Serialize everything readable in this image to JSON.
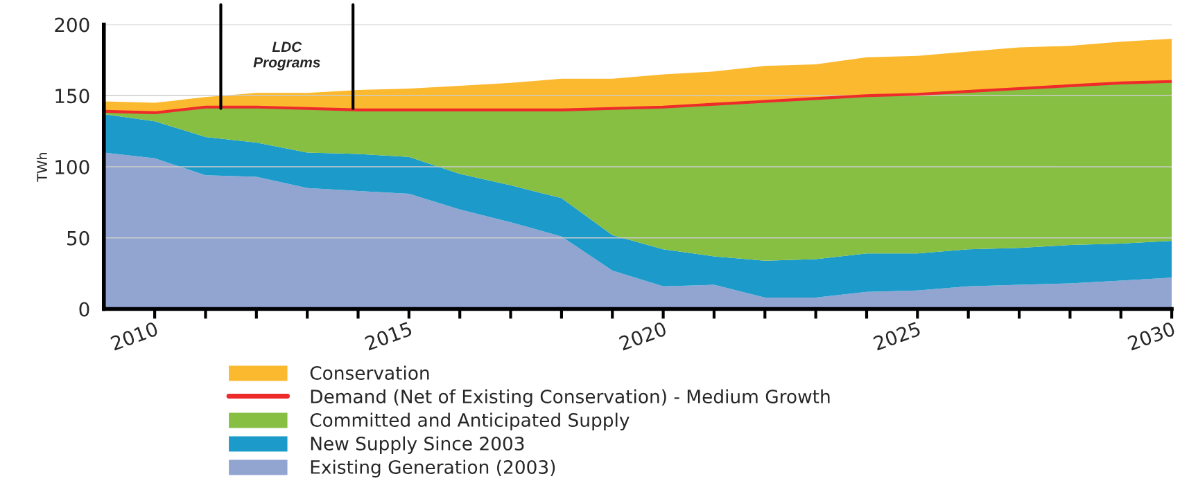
{
  "chart_data": {
    "type": "area",
    "stacked": true,
    "ylabel": "TWh",
    "x": [
      2009,
      2010,
      2011,
      2012,
      2013,
      2014,
      2015,
      2016,
      2017,
      2018,
      2019,
      2020,
      2021,
      2022,
      2023,
      2024,
      2025,
      2026,
      2027,
      2028,
      2029,
      2030
    ],
    "series": [
      {
        "name": "Existing Generation (2003)",
        "color": "#92a5d1",
        "values": [
          110,
          106,
          94,
          93,
          85,
          83,
          81,
          70,
          61,
          51,
          27,
          16,
          17,
          8,
          8,
          12,
          13,
          16,
          17,
          18,
          20,
          22
        ]
      },
      {
        "name": "New Supply Since 2003",
        "color": "#1c9bca",
        "values": [
          27,
          26,
          27,
          24,
          25,
          26,
          26,
          25,
          26,
          27,
          25,
          26,
          20,
          26,
          27,
          27,
          26,
          26,
          26,
          27,
          26,
          26
        ]
      },
      {
        "name": "Committed and Anticipated Supply",
        "color": "#86bf42",
        "values": [
          2,
          6,
          21,
          25,
          31,
          31,
          33,
          45,
          53,
          62,
          89,
          100,
          107,
          112,
          113,
          111,
          112,
          111,
          112,
          112,
          113,
          112
        ]
      },
      {
        "name": "Demand (Net of Existing Conservation) - Medium Growth",
        "color": "#ee2b2b",
        "type": "line",
        "values": [
          139,
          138,
          142,
          142,
          141,
          140,
          140,
          140,
          140,
          140,
          141,
          142,
          144,
          146,
          148,
          150,
          151,
          153,
          155,
          157,
          159,
          160
        ]
      },
      {
        "name": "Conservation",
        "color": "#fbb92f",
        "values": [
          7,
          7,
          7,
          10,
          11,
          14,
          15,
          17,
          19,
          22,
          21,
          23,
          23,
          25,
          24,
          27,
          27,
          28,
          29,
          28,
          29,
          30
        ]
      }
    ],
    "xlim": [
      2009,
      2030
    ],
    "xticks": [
      {
        "value": 2010,
        "label": "2010"
      },
      {
        "value": 2011,
        "label": null
      },
      {
        "value": 2012,
        "label": null
      },
      {
        "value": 2013,
        "label": null
      },
      {
        "value": 2014,
        "label": null
      },
      {
        "value": 2015,
        "label": "2015"
      },
      {
        "value": 2016,
        "label": null
      },
      {
        "value": 2017,
        "label": null
      },
      {
        "value": 2018,
        "label": null
      },
      {
        "value": 2019,
        "label": null
      },
      {
        "value": 2020,
        "label": "2020"
      },
      {
        "value": 2021,
        "label": null
      },
      {
        "value": 2022,
        "label": null
      },
      {
        "value": 2023,
        "label": null
      },
      {
        "value": 2024,
        "label": null
      },
      {
        "value": 2025,
        "label": "2025"
      },
      {
        "value": 2026,
        "label": null
      },
      {
        "value": 2027,
        "label": null
      },
      {
        "value": 2028,
        "label": null
      },
      {
        "value": 2029,
        "label": null
      },
      {
        "value": 2030,
        "label": "2030"
      }
    ],
    "ylim": [
      0,
      200
    ],
    "yticks": [
      0,
      50,
      100,
      150,
      200
    ],
    "grid": "y",
    "legend": "bottom",
    "ref_lines": [
      {
        "axis": "x",
        "value": 2011.3,
        "color": "#000000"
      },
      {
        "axis": "x",
        "value": 2013.9,
        "color": "#000000"
      }
    ],
    "annotations": [
      "LDC\nPrograms"
    ]
  }
}
